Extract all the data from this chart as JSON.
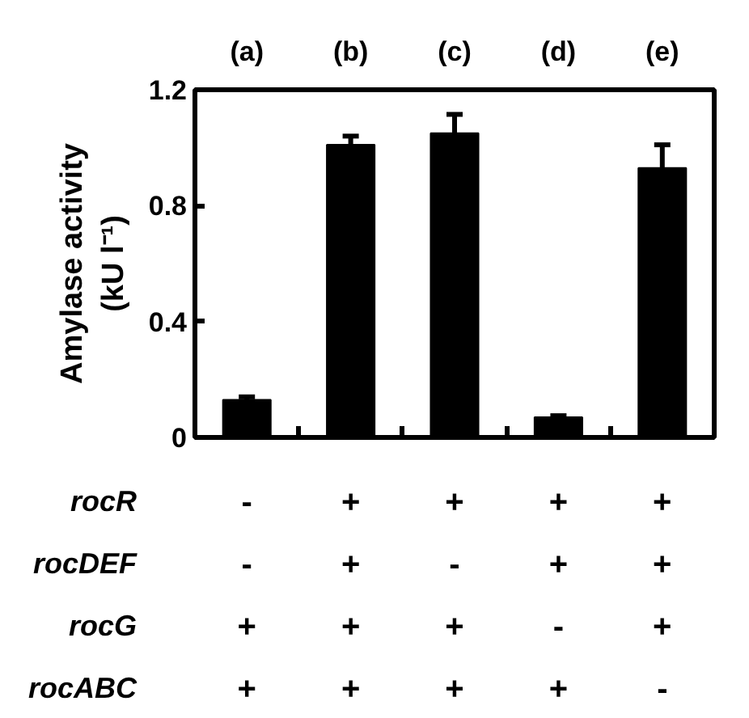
{
  "chart_data": {
    "type": "bar",
    "categories": [
      "(a)",
      "(b)",
      "(c)",
      "(d)",
      "(e)"
    ],
    "values": [
      0.13,
      1.01,
      1.05,
      0.07,
      0.93
    ],
    "errors": [
      [
        0.13,
        0.14
      ],
      [
        1.01,
        1.04
      ],
      [
        1.05,
        1.115
      ],
      [
        0.07,
        0.075
      ],
      [
        0.93,
        1.01
      ]
    ],
    "color": "#000000",
    "ylabel": "Amylase activity\n(kU l⁻¹)",
    "ylim": [
      0,
      1.2
    ],
    "yticks": [
      0,
      0.4,
      0.8,
      1.2
    ],
    "grid": false,
    "annotations": [
      "rocR",
      "-",
      "+",
      "+",
      "+",
      "+",
      "rocDEF",
      "-",
      "+",
      "-",
      "+",
      "+",
      "rocG",
      "+",
      "+",
      "+",
      "-",
      "+",
      "rocABC",
      "+",
      "+",
      "+",
      "+",
      "-"
    ]
  }
}
